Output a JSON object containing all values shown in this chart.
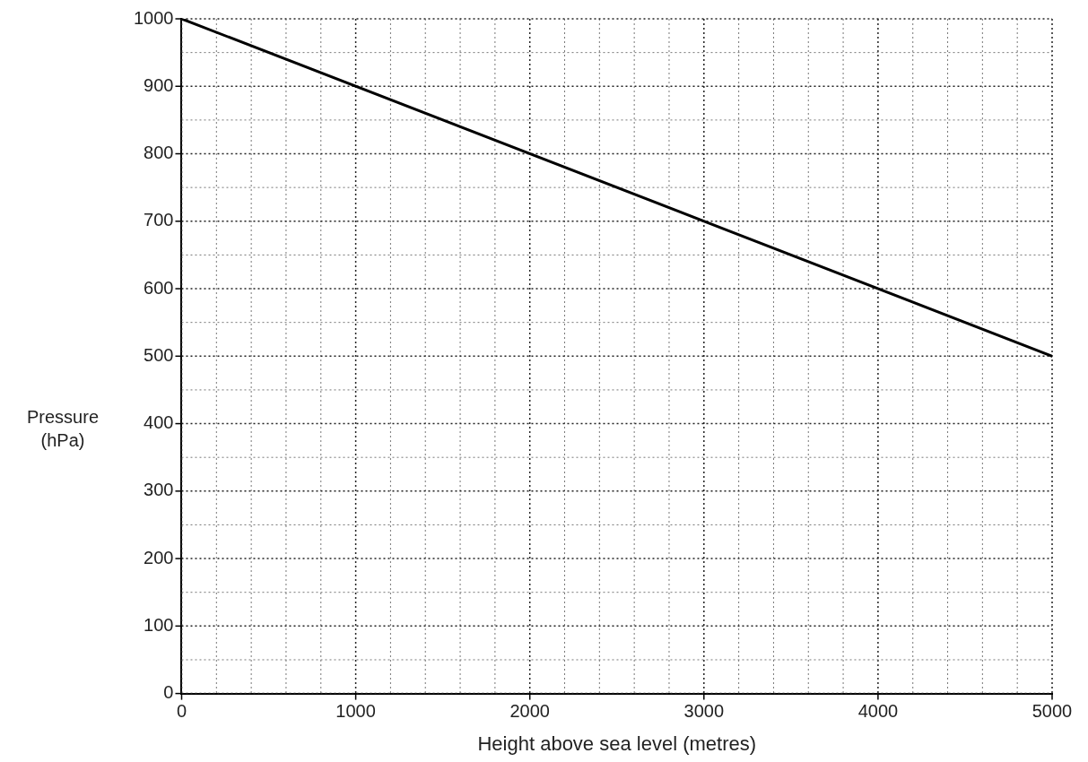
{
  "chart_data": {
    "type": "line",
    "xlabel": "Height above sea level (metres)",
    "ylabel": "Pressure (hPa)",
    "x": [
      0,
      5000
    ],
    "series": [
      {
        "color": "#000000",
        "values": [
          1000,
          500
        ]
      }
    ],
    "xlim": [
      0,
      5000
    ],
    "ylim": [
      0,
      1000
    ],
    "xticks": [
      0,
      {
        "value": 200,
        "label": null
      },
      {
        "value": 400,
        "label": null
      },
      {
        "value": 600,
        "label": null
      },
      {
        "value": 800,
        "label": null
      },
      1000,
      {
        "value": 1200,
        "label": null
      },
      {
        "value": 1400,
        "label": null
      },
      {
        "value": 1600,
        "label": null
      },
      {
        "value": 1800,
        "label": null
      },
      2000,
      {
        "value": 2200,
        "label": null
      },
      {
        "value": 2400,
        "label": null
      },
      {
        "value": 2600,
        "label": null
      },
      {
        "value": 2800,
        "label": null
      },
      3000,
      {
        "value": 3200,
        "label": null
      },
      {
        "value": 3400,
        "label": null
      },
      {
        "value": 3600,
        "label": null
      },
      {
        "value": 3800,
        "label": null
      },
      4000,
      {
        "value": 4200,
        "label": null
      },
      {
        "value": 4400,
        "label": null
      },
      {
        "value": 4600,
        "label": null
      },
      {
        "value": 4800,
        "label": null
      },
      5000
    ],
    "yticks": [
      0,
      {
        "value": 50,
        "label": null
      },
      100,
      {
        "value": 150,
        "label": null
      },
      200,
      {
        "value": 250,
        "label": null
      },
      300,
      {
        "value": 350,
        "label": null
      },
      400,
      {
        "value": 450,
        "label": null
      },
      500,
      {
        "value": 550,
        "label": null
      },
      600,
      {
        "value": 650,
        "label": null
      },
      700,
      {
        "value": 750,
        "label": null
      },
      800,
      {
        "value": 850,
        "label": null
      },
      900,
      {
        "value": 950,
        "label": null
      },
      1000
    ],
    "grid": true,
    "marker": "none",
    "line_style": "solid",
    "legend": false
  }
}
